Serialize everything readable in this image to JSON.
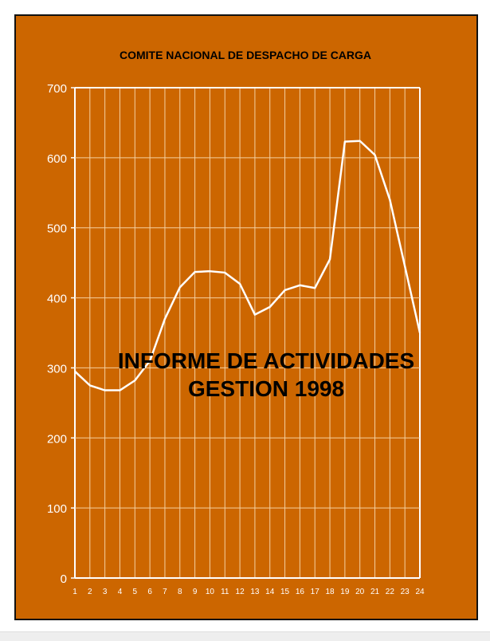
{
  "chart_data": {
    "type": "line",
    "title": "COMITE NACIONAL DE DESPACHO DE CARGA",
    "overlay_text": [
      "INFORME DE ACTIVIDADES",
      "GESTION 1998"
    ],
    "xlabel": "",
    "ylabel": "",
    "x": [
      1,
      2,
      3,
      4,
      5,
      6,
      7,
      8,
      9,
      10,
      11,
      12,
      13,
      14,
      15,
      16,
      17,
      18,
      19,
      20,
      21,
      22,
      23,
      24
    ],
    "series": [
      {
        "name": "",
        "values": [
          295,
          275,
          268,
          268,
          282,
          310,
          370,
          415,
          437,
          438,
          436,
          420,
          376,
          387,
          411,
          418,
          414,
          455,
          623,
          624,
          604,
          540,
          445,
          350
        ]
      }
    ],
    "ylim": [
      0,
      700
    ],
    "yticks": [
      0,
      100,
      200,
      300,
      400,
      500,
      600,
      700
    ],
    "grid": true,
    "colors": {
      "background": "#cc6600",
      "line": "#ffffff",
      "grid": "#f5d0a0",
      "text": "#000000"
    }
  }
}
